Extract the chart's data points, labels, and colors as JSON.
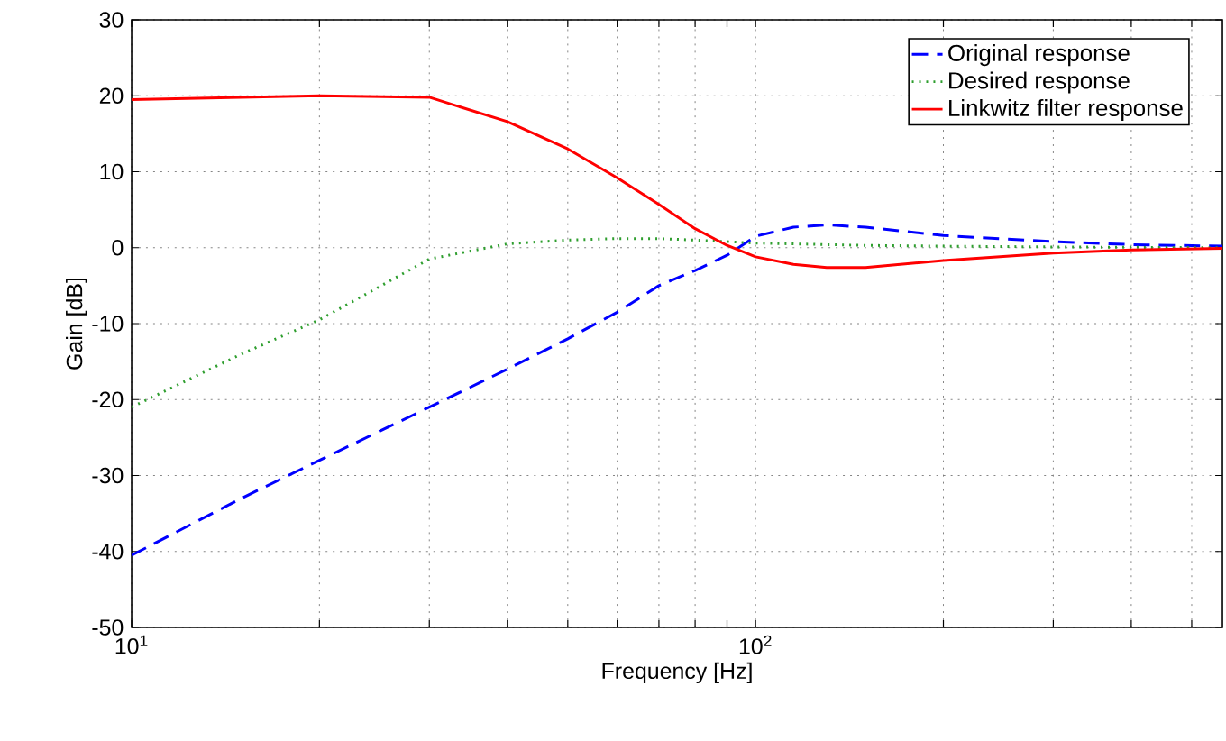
{
  "chart_data": {
    "type": "line",
    "xlabel": "Frequency [Hz]",
    "ylabel": "Gain [dB]",
    "log": "x",
    "grid": true,
    "legend": "top right",
    "marker": "none",
    "xlim": [
      10,
      560
    ],
    "ylim": [
      -50,
      30
    ],
    "xticks": [
      {
        "value": 10,
        "label": "10$^{1}$"
      },
      {
        "value": 20,
        "label": null
      },
      {
        "value": 30,
        "label": null
      },
      {
        "value": 40,
        "label": null
      },
      {
        "value": 50,
        "label": null
      },
      {
        "value": 60,
        "label": null
      },
      {
        "value": 70,
        "label": null
      },
      {
        "value": 80,
        "label": null
      },
      {
        "value": 90,
        "label": null
      },
      {
        "value": 100,
        "label": "10$^{2}$"
      },
      {
        "value": 200,
        "label": null
      },
      {
        "value": 300,
        "label": null
      },
      {
        "value": 400,
        "label": null
      },
      {
        "value": 500,
        "label": null
      }
    ],
    "yticks": [
      -50,
      -40,
      -30,
      -20,
      -10,
      0,
      10,
      20,
      30
    ],
    "x": [
      10,
      15,
      20,
      30,
      40,
      50,
      60,
      70,
      80,
      90,
      100,
      115,
      130,
      150,
      200,
      300,
      400,
      560
    ],
    "series": [
      {
        "name": "Original response",
        "color": "#0000ff",
        "line_style": "dashed",
        "values": [
          -40.5,
          -33,
          -28,
          -21,
          -16,
          -12,
          -8.5,
          -5,
          -3,
          -1,
          1.5,
          2.7,
          3,
          2.7,
          1.6,
          0.8,
          0.4,
          0.2
        ]
      },
      {
        "name": "Desired response",
        "color": "#2e9e2e",
        "line_style": "dotted",
        "values": [
          -21,
          -14,
          -9.5,
          -1.5,
          0.5,
          1,
          1.2,
          1.2,
          1,
          0.8,
          0.6,
          0.5,
          0.4,
          0.3,
          0.2,
          0.1,
          0.05,
          0
        ]
      },
      {
        "name": "Linkwitz filter response",
        "color": "#ff0000",
        "line_style": "solid",
        "values": [
          19.5,
          19.8,
          20,
          19.8,
          16.6,
          13,
          9.2,
          5.7,
          2.5,
          0.3,
          -1.2,
          -2.2,
          -2.6,
          -2.6,
          -1.7,
          -0.7,
          -0.3,
          -0.1
        ]
      }
    ]
  }
}
